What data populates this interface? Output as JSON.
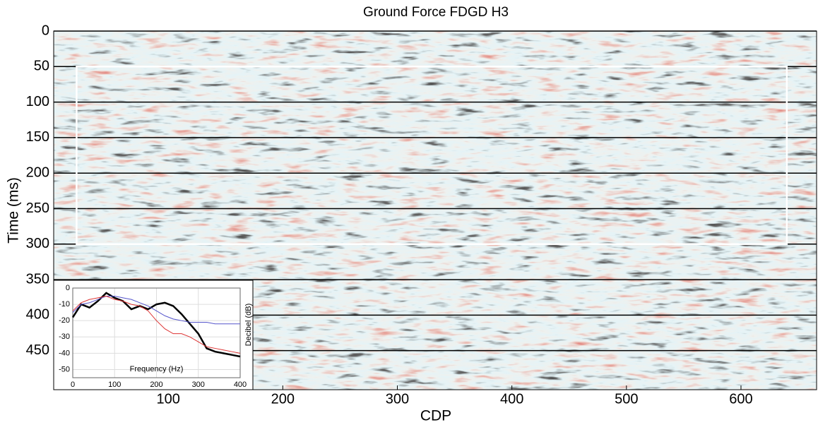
{
  "chart_data": [
    {
      "type": "seismic",
      "title": "Ground Force FDGD H3",
      "x_label": "CDP",
      "y_label": "Time (ms)",
      "xlim": [
        0,
        666
      ],
      "xticks": [
        100,
        200,
        300,
        400,
        500,
        600
      ],
      "ylim": [
        0,
        505
      ],
      "yticks": [
        0,
        50,
        100,
        150,
        200,
        250,
        300,
        350,
        400,
        450
      ],
      "grid": true,
      "window_cdp": [
        20,
        640
      ],
      "window_time": [
        50,
        300
      ],
      "window_color": "#ffffff"
    },
    {
      "type": "line",
      "x_label": "Frequency (Hz)",
      "y_label": "Decibel (dB)",
      "x": [
        0,
        20,
        40,
        60,
        80,
        100,
        120,
        140,
        160,
        180,
        200,
        220,
        240,
        260,
        280,
        300,
        320,
        340,
        360,
        380,
        400
      ],
      "series": [
        {
          "color": "#000000",
          "values": [
            -18,
            -10,
            -12,
            -8,
            -3,
            -6,
            -8,
            -13,
            -11,
            -13,
            -10,
            -9,
            -11,
            -16,
            -22,
            -28,
            -37,
            -39,
            -40,
            -41,
            -42
          ]
        },
        {
          "color": "#5555cc",
          "values": [
            -15,
            -10,
            -9,
            -7,
            -5,
            -5,
            -6,
            -7,
            -9,
            -11,
            -14,
            -17,
            -19,
            -20,
            -21,
            -21,
            -21,
            -22,
            -22,
            -22,
            -22
          ]
        },
        {
          "color": "#dd3333",
          "values": [
            -14,
            -9,
            -7,
            -6,
            -5,
            -7,
            -8,
            -10,
            -11,
            -14,
            -20,
            -25,
            -28,
            -28,
            -30,
            -33,
            -36,
            -37,
            -38,
            -39,
            -40
          ]
        }
      ],
      "xlim": [
        0,
        400
      ],
      "xticks": [
        0,
        100,
        200,
        300,
        400
      ],
      "ylim": [
        -55,
        0
      ],
      "yticks": [
        0,
        -10,
        -20,
        -30,
        -40,
        -50
      ],
      "grid": true
    }
  ]
}
